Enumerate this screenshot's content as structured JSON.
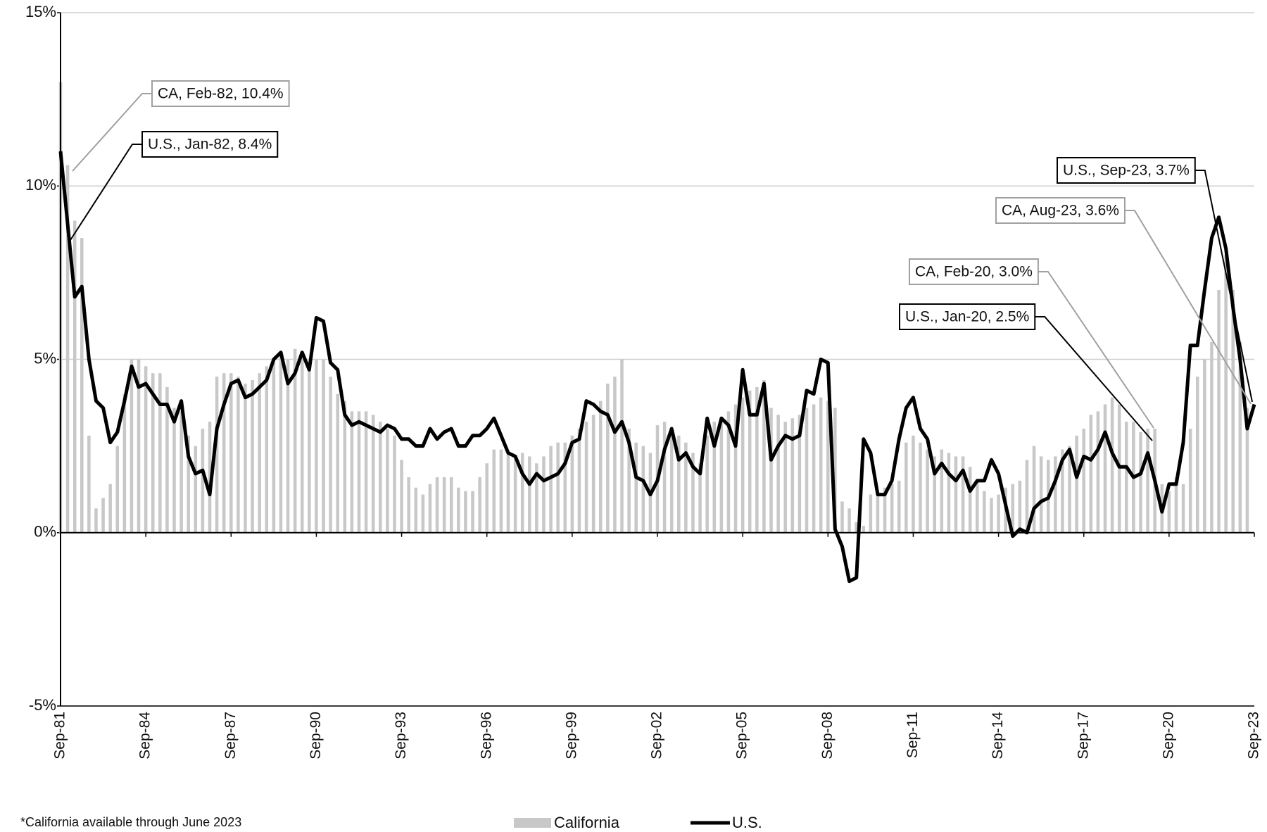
{
  "chart_data": {
    "type": "bar-line",
    "note": "*California available through June 2023",
    "categories": [
      "Sep-81",
      null,
      null,
      null,
      null,
      null,
      null,
      null,
      null,
      null,
      null,
      null,
      "Sep-84",
      null,
      null,
      null,
      null,
      null,
      null,
      null,
      null,
      null,
      null,
      null,
      "Sep-87",
      null,
      null,
      null,
      null,
      null,
      null,
      null,
      null,
      null,
      null,
      null,
      "Sep-90",
      null,
      null,
      null,
      null,
      null,
      null,
      null,
      null,
      null,
      null,
      null,
      "Sep-93",
      null,
      null,
      null,
      null,
      null,
      null,
      null,
      null,
      null,
      null,
      null,
      "Sep-96",
      null,
      null,
      null,
      null,
      null,
      null,
      null,
      null,
      null,
      null,
      null,
      "Sep-99",
      null,
      null,
      null,
      null,
      null,
      null,
      null,
      null,
      null,
      null,
      null,
      "Sep-02",
      null,
      null,
      null,
      null,
      null,
      null,
      null,
      null,
      null,
      null,
      null,
      "Sep-05",
      null,
      null,
      null,
      null,
      null,
      null,
      null,
      null,
      null,
      null,
      null,
      "Sep-08",
      null,
      null,
      null,
      null,
      null,
      null,
      null,
      null,
      null,
      null,
      null,
      "Sep-11",
      null,
      null,
      null,
      null,
      null,
      null,
      null,
      null,
      null,
      null,
      null,
      "Sep-14",
      null,
      null,
      null,
      null,
      null,
      null,
      null,
      null,
      null,
      null,
      null,
      "Sep-17",
      null,
      null,
      null,
      null,
      null,
      null,
      null,
      null,
      null,
      null,
      null,
      "Sep-20",
      null,
      null,
      null,
      null,
      null,
      null,
      null,
      null,
      null,
      null,
      null,
      "Sep-23"
    ],
    "series": [
      {
        "name": "California",
        "type": "bar",
        "color": "#c8c8c8",
        "values": [
          13.0,
          10.6,
          9.0,
          8.5,
          2.8,
          0.7,
          1.0,
          1.4,
          2.5,
          4.0,
          5.0,
          5.0,
          4.8,
          4.6,
          4.6,
          4.2,
          3.6,
          3.5,
          2.8,
          2.5,
          3.0,
          3.2,
          4.5,
          4.6,
          4.6,
          4.5,
          4.3,
          4.4,
          4.6,
          4.8,
          5.0,
          5.2,
          5.0,
          5.3,
          5.0,
          4.9,
          5.0,
          5.0,
          4.5,
          4.0,
          3.8,
          3.5,
          3.5,
          3.5,
          3.4,
          3.2,
          3.0,
          2.8,
          2.1,
          1.6,
          1.3,
          1.1,
          1.4,
          1.6,
          1.6,
          1.6,
          1.3,
          1.2,
          1.2,
          1.6,
          2.0,
          2.4,
          2.4,
          2.3,
          2.2,
          2.3,
          2.2,
          2.0,
          2.2,
          2.5,
          2.6,
          2.6,
          2.8,
          3.0,
          3.2,
          3.4,
          3.8,
          4.3,
          4.5,
          5.0,
          3.0,
          2.6,
          2.5,
          2.3,
          3.1,
          3.2,
          2.8,
          2.8,
          2.6,
          2.3,
          2.0,
          2.8,
          3.2,
          3.2,
          3.5,
          3.7,
          3.9,
          4.1,
          4.2,
          4.4,
          3.6,
          3.4,
          3.2,
          3.3,
          3.4,
          3.6,
          3.7,
          3.9,
          3.8,
          3.6,
          0.9,
          0.7,
          0.3,
          0.2,
          1.1,
          1.2,
          1.3,
          1.4,
          1.5,
          2.6,
          2.8,
          2.6,
          2.4,
          2.2,
          2.4,
          2.3,
          2.2,
          2.2,
          1.9,
          1.5,
          1.2,
          1.0,
          1.1,
          1.3,
          1.4,
          1.5,
          2.1,
          2.5,
          2.2,
          2.1,
          2.2,
          2.4,
          2.5,
          2.8,
          3.0,
          3.4,
          3.5,
          3.7,
          3.9,
          3.7,
          3.2,
          3.2,
          2.9,
          3.0,
          3.0,
          1.4,
          1.2,
          1.6,
          1.4,
          3.0,
          4.5,
          5.0,
          5.5,
          7.0,
          8.0,
          7.0,
          5.5,
          3.6,
          null
        ]
      },
      {
        "name": "U.S.",
        "type": "line",
        "color": "#000000",
        "values": [
          11.0,
          8.9,
          6.8,
          7.1,
          5.0,
          3.8,
          3.6,
          2.6,
          2.9,
          3.8,
          4.8,
          4.2,
          4.3,
          4.0,
          3.7,
          3.7,
          3.2,
          3.8,
          2.2,
          1.7,
          1.8,
          1.1,
          3.0,
          3.7,
          4.3,
          4.4,
          3.9,
          4.0,
          4.2,
          4.4,
          5.0,
          5.2,
          4.3,
          4.6,
          5.2,
          4.7,
          6.2,
          6.1,
          4.9,
          4.7,
          3.4,
          3.1,
          3.2,
          3.1,
          3.0,
          2.9,
          3.1,
          3.0,
          2.7,
          2.7,
          2.5,
          2.5,
          3.0,
          2.7,
          2.9,
          3.0,
          2.5,
          2.5,
          2.8,
          2.8,
          3.0,
          3.3,
          2.8,
          2.3,
          2.2,
          1.7,
          1.4,
          1.7,
          1.5,
          1.6,
          1.7,
          2.0,
          2.6,
          2.7,
          3.8,
          3.7,
          3.5,
          3.4,
          2.9,
          3.2,
          2.6,
          1.6,
          1.5,
          1.1,
          1.5,
          2.4,
          3.0,
          2.1,
          2.3,
          1.9,
          1.7,
          3.3,
          2.5,
          3.3,
          3.1,
          2.5,
          4.7,
          3.4,
          3.4,
          4.3,
          2.1,
          2.5,
          2.8,
          2.7,
          2.8,
          4.1,
          4.0,
          5.0,
          4.9,
          0.1,
          -0.4,
          -1.4,
          -1.3,
          2.7,
          2.3,
          1.1,
          1.1,
          1.5,
          2.7,
          3.6,
          3.9,
          3.0,
          2.7,
          1.7,
          2.0,
          1.7,
          1.5,
          1.8,
          1.2,
          1.5,
          1.5,
          2.1,
          1.7,
          0.8,
          -0.1,
          0.1,
          0.0,
          0.7,
          0.9,
          1.0,
          1.5,
          2.1,
          2.4,
          1.6,
          2.2,
          2.1,
          2.4,
          2.9,
          2.3,
          1.9,
          1.9,
          1.6,
          1.7,
          2.3,
          1.5,
          0.6,
          1.4,
          1.4,
          2.6,
          5.4,
          5.4,
          7.0,
          8.5,
          9.1,
          8.2,
          6.5,
          5.0,
          3.0,
          3.7
        ]
      }
    ],
    "ylim": [
      -5,
      15
    ],
    "yticks": [
      {
        "value": -5,
        "label": "-5%"
      },
      {
        "value": 0,
        "label": "0%"
      },
      {
        "value": 5,
        "label": "5%"
      },
      {
        "value": 10,
        "label": "10%"
      },
      {
        "value": 15,
        "label": "15%"
      }
    ],
    "grid": true,
    "legend": "bottom",
    "annotations": [
      {
        "text": "CA, Feb-82, 10.4%",
        "series": 0
      },
      {
        "text": "U.S., Jan-82, 8.4%",
        "series": 1
      },
      {
        "text": "U.S., Sep-23, 3.7%",
        "series": 1
      },
      {
        "text": "CA, Aug-23, 3.6%",
        "series": 0
      },
      {
        "text": "CA, Feb-20, 3.0%",
        "series": 0
      },
      {
        "text": "U.S., Jan-20, 2.5%",
        "series": 1
      }
    ]
  }
}
